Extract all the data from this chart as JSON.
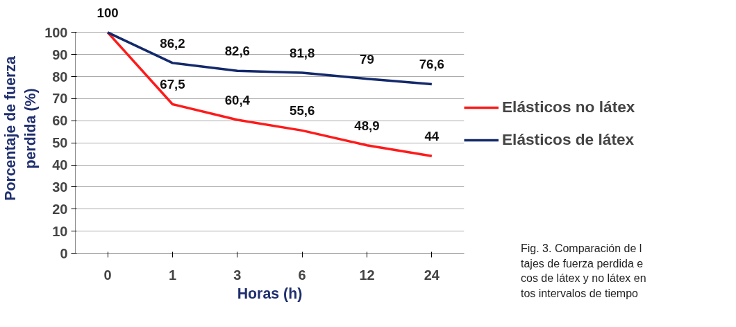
{
  "chart_data": {
    "type": "line",
    "xlabel": "Horas (h)",
    "ylabel": "Porcentaje de fuerza\nperdida (%)",
    "categories": [
      "0",
      "1",
      "3",
      "6",
      "12",
      "24"
    ],
    "series": [
      {
        "name": "Elásticos no látex",
        "color": "#ff1a1a",
        "values": [
          100,
          67.5,
          60.4,
          55.6,
          48.9,
          44
        ],
        "value_labels": [
          "100",
          "67,5",
          "60,4",
          "55,6",
          "48,9",
          "44"
        ]
      },
      {
        "name": "Elásticos de látex",
        "color": "#13296b",
        "values": [
          100,
          86.2,
          82.6,
          81.8,
          79,
          76.6
        ],
        "value_labels": [
          null,
          "86,2",
          "82,6",
          "81,8",
          "79",
          "76,6"
        ]
      }
    ],
    "ylim": [
      0,
      100
    ],
    "yticks": [
      0,
      10,
      20,
      30,
      40,
      50,
      60,
      70,
      80,
      90,
      100
    ],
    "grid": "y",
    "legend": "right",
    "marker": "none",
    "line_style": "solid",
    "annotations": [
      "Fig. 3. Comparación de l\ntajes de fuerza perdida e\ncos de látex y no látex en\ntos intervalos de tiempo"
    ]
  }
}
